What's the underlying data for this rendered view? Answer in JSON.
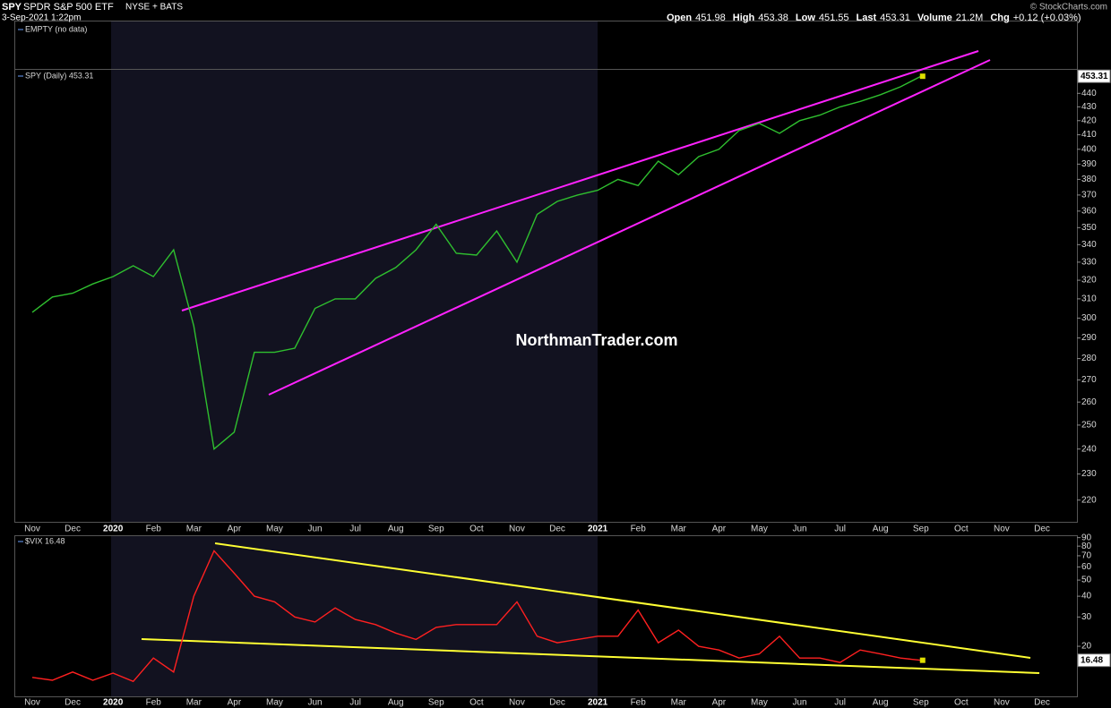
{
  "header": {
    "symbol": "SPY",
    "name": "SPDR S&P 500 ETF",
    "exchange": "NYSE + BATS",
    "timestamp": "3-Sep-2021 1:22pm",
    "copyright": "© StockCharts.com",
    "quote": [
      {
        "label": "Open",
        "value": 451.98
      },
      {
        "label": "High",
        "value": 453.38
      },
      {
        "label": "Low",
        "value": 451.55
      },
      {
        "label": "Last",
        "value": 453.31
      },
      {
        "label": "Volume",
        "value": "21.2M"
      },
      {
        "label": "Chg",
        "value": "+0.12 (+0.03%)"
      }
    ],
    "empty_panel": "EMPTY (no data)",
    "watermark": "NorthmanTrader.com"
  },
  "chart_data": [
    {
      "type": "line",
      "legend": "SPY (Daily) 453.31",
      "last_label": "453.31",
      "yscale": "log",
      "categories": [
        "Nov",
        null,
        "Dec",
        null,
        "2020",
        null,
        "Feb",
        null,
        "Mar",
        null,
        "Apr",
        null,
        "May",
        null,
        "Jun",
        null,
        "Jul",
        null,
        "Aug",
        null,
        "Sep",
        null,
        "Oct",
        null,
        "Nov",
        null,
        "Dec",
        null,
        "2021",
        null,
        "Feb",
        null,
        "Mar",
        null,
        "Apr",
        null,
        "May",
        null,
        "Jun",
        null,
        "Jul",
        null,
        "Aug",
        null,
        "Sep",
        null,
        "Oct",
        null,
        "Nov",
        null,
        "Dec",
        null
      ],
      "series": [
        {
          "name": "SPY",
          "color": "#2fbf2f",
          "values": [
            303,
            311,
            313,
            318,
            322,
            328,
            322,
            337,
            296,
            240,
            247,
            283,
            283,
            285,
            305,
            310,
            310,
            321,
            327,
            337,
            352,
            335,
            334,
            348,
            330,
            358,
            366,
            370,
            373,
            380,
            376,
            392,
            383,
            395,
            400,
            413,
            418,
            411,
            420,
            424,
            430,
            434,
            439,
            445,
            453,
            null,
            null,
            null,
            null,
            null,
            null,
            null
          ]
        }
      ],
      "ylim": [
        212,
        458
      ],
      "yticks": [
        220,
        230,
        240,
        250,
        260,
        270,
        280,
        290,
        300,
        310,
        320,
        330,
        340,
        350,
        360,
        370,
        380,
        390,
        400,
        410,
        420,
        430,
        440
      ]
    },
    {
      "type": "line",
      "legend": "$VIX 16.48",
      "last_label": "16.48",
      "yscale": "log",
      "categories": [
        "Nov",
        null,
        "Dec",
        null,
        "2020",
        null,
        "Feb",
        null,
        "Mar",
        null,
        "Apr",
        null,
        "May",
        null,
        "Jun",
        null,
        "Jul",
        null,
        "Aug",
        null,
        "Sep",
        null,
        "Oct",
        null,
        "Nov",
        null,
        "Dec",
        null,
        "2021",
        null,
        "Feb",
        null,
        "Mar",
        null,
        "Apr",
        null,
        "May",
        null,
        "Jun",
        null,
        "Jul",
        null,
        "Aug",
        null,
        "Sep",
        null,
        "Oct",
        null,
        "Nov",
        null,
        "Dec",
        null
      ],
      "series": [
        {
          "name": "$VIX",
          "color": "#ff2020",
          "values": [
            13,
            12.5,
            14,
            12.5,
            13.8,
            12.3,
            17,
            14,
            40,
            75,
            55,
            40,
            37,
            30,
            28,
            34,
            29,
            27,
            24,
            22,
            26,
            27,
            27,
            27,
            37,
            23,
            21,
            22,
            23,
            23,
            33,
            21,
            25,
            20,
            19,
            17,
            18,
            23,
            17,
            17,
            16,
            19,
            18,
            17,
            16.48,
            null,
            null,
            null,
            null,
            null,
            null,
            null
          ]
        }
      ],
      "ylim": [
        10,
        93
      ],
      "yticks": [
        20,
        30,
        40,
        50,
        60,
        70,
        80,
        90
      ]
    }
  ]
}
